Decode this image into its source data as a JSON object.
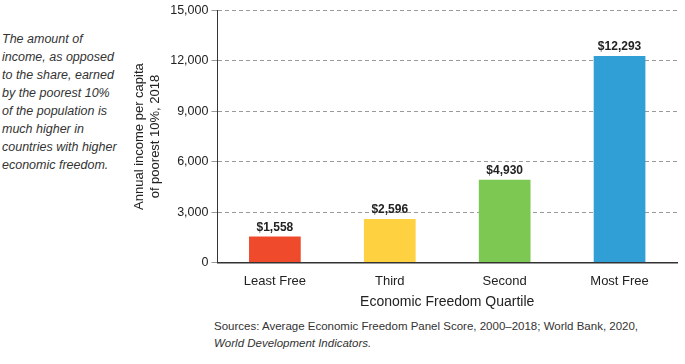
{
  "chart_data": {
    "type": "bar",
    "annotation": "The amount of income, as opposed to the share, earned by the poorest 10% of the population is much higher in countries with higher economic freedom.",
    "ylabel": [
      "Annual income per capita",
      "of poorest 10%, 2018"
    ],
    "xlabel": "Economic Freedom Quartile",
    "categories": [
      "Least Free",
      "Third",
      "Second",
      "Most Free"
    ],
    "values": [
      1558,
      2596,
      4930,
      12293
    ],
    "value_labels": [
      "$1,558",
      "$2,596",
      "$4,930",
      "$12,293"
    ],
    "colors": [
      "#ef4a2c",
      "#fdd13f",
      "#7dc852",
      "#2f9fd5"
    ],
    "ylim": [
      0,
      15000
    ],
    "yticks": [
      0,
      {
        "value": 3000,
        "label": "3,000"
      },
      {
        "value": 6000,
        "label": "6,000"
      },
      {
        "value": 9000,
        "label": "9,000"
      },
      {
        "value": 12000,
        "label": "12,000"
      },
      {
        "value": 15000,
        "label": "15,000"
      }
    ],
    "grid": true,
    "data_labels": true,
    "source": [
      "Sources: Average Economic Freedom Panel Score, 2000–2018; World Bank, 2020,",
      "World Development Indicators."
    ]
  }
}
